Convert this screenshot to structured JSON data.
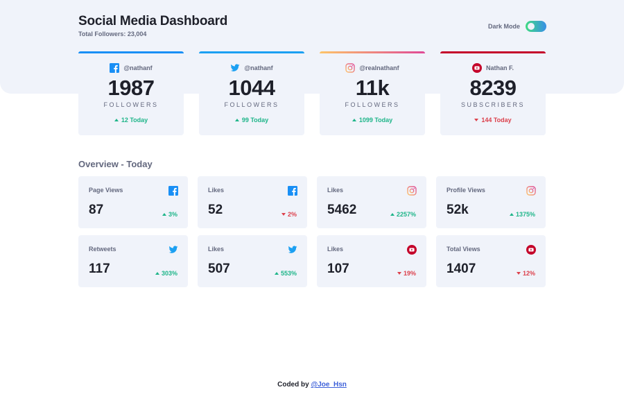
{
  "header": {
    "title": "Social Media Dashboard",
    "total_followers": "Total Followers: 23,004",
    "dark_mode_label": "Dark Mode",
    "dark_mode_on": true
  },
  "cards": [
    {
      "platform": "facebook",
      "icon": "facebook-icon",
      "handle": "@nathanf",
      "count": "1987",
      "unit": "FOLLOWERS",
      "today": "12 Today",
      "trend": "up"
    },
    {
      "platform": "twitter",
      "icon": "twitter-icon",
      "handle": "@nathanf",
      "count": "1044",
      "unit": "FOLLOWERS",
      "today": "99 Today",
      "trend": "up"
    },
    {
      "platform": "instagram",
      "icon": "instagram-icon",
      "handle": "@realnathanf",
      "count": "11k",
      "unit": "FOLLOWERS",
      "today": "1099 Today",
      "trend": "up"
    },
    {
      "platform": "youtube",
      "icon": "youtube-icon",
      "handle": "Nathan F.",
      "count": "8239",
      "unit": "SUBSCRIBERS",
      "today": "144 Today",
      "trend": "down"
    }
  ],
  "overview": {
    "title": "Overview - Today",
    "tiles": [
      {
        "label": "Page Views",
        "icon": "facebook-icon",
        "value": "87",
        "pct": "3%",
        "trend": "up"
      },
      {
        "label": "Likes",
        "icon": "facebook-icon",
        "value": "52",
        "pct": "2%",
        "trend": "down"
      },
      {
        "label": "Likes",
        "icon": "instagram-icon",
        "value": "5462",
        "pct": "2257%",
        "trend": "up"
      },
      {
        "label": "Profile Views",
        "icon": "instagram-icon",
        "value": "52k",
        "pct": "1375%",
        "trend": "up"
      },
      {
        "label": "Retweets",
        "icon": "twitter-icon",
        "value": "117",
        "pct": "303%",
        "trend": "up"
      },
      {
        "label": "Likes",
        "icon": "twitter-icon",
        "value": "507",
        "pct": "553%",
        "trend": "up"
      },
      {
        "label": "Likes",
        "icon": "youtube-icon",
        "value": "107",
        "pct": "19%",
        "trend": "down"
      },
      {
        "label": "Total Views",
        "icon": "youtube-icon",
        "value": "1407",
        "pct": "12%",
        "trend": "down"
      }
    ]
  },
  "footer": {
    "prefix": "Coded by",
    "author": "@Joe_Hsn"
  },
  "colors": {
    "facebook": "#198ff5",
    "twitter": "#1ca0f2",
    "instagram_start": "#fdc468",
    "instagram_end": "#df4996",
    "youtube": "#c4032a",
    "up": "#1eb589",
    "down": "#dc414c"
  }
}
